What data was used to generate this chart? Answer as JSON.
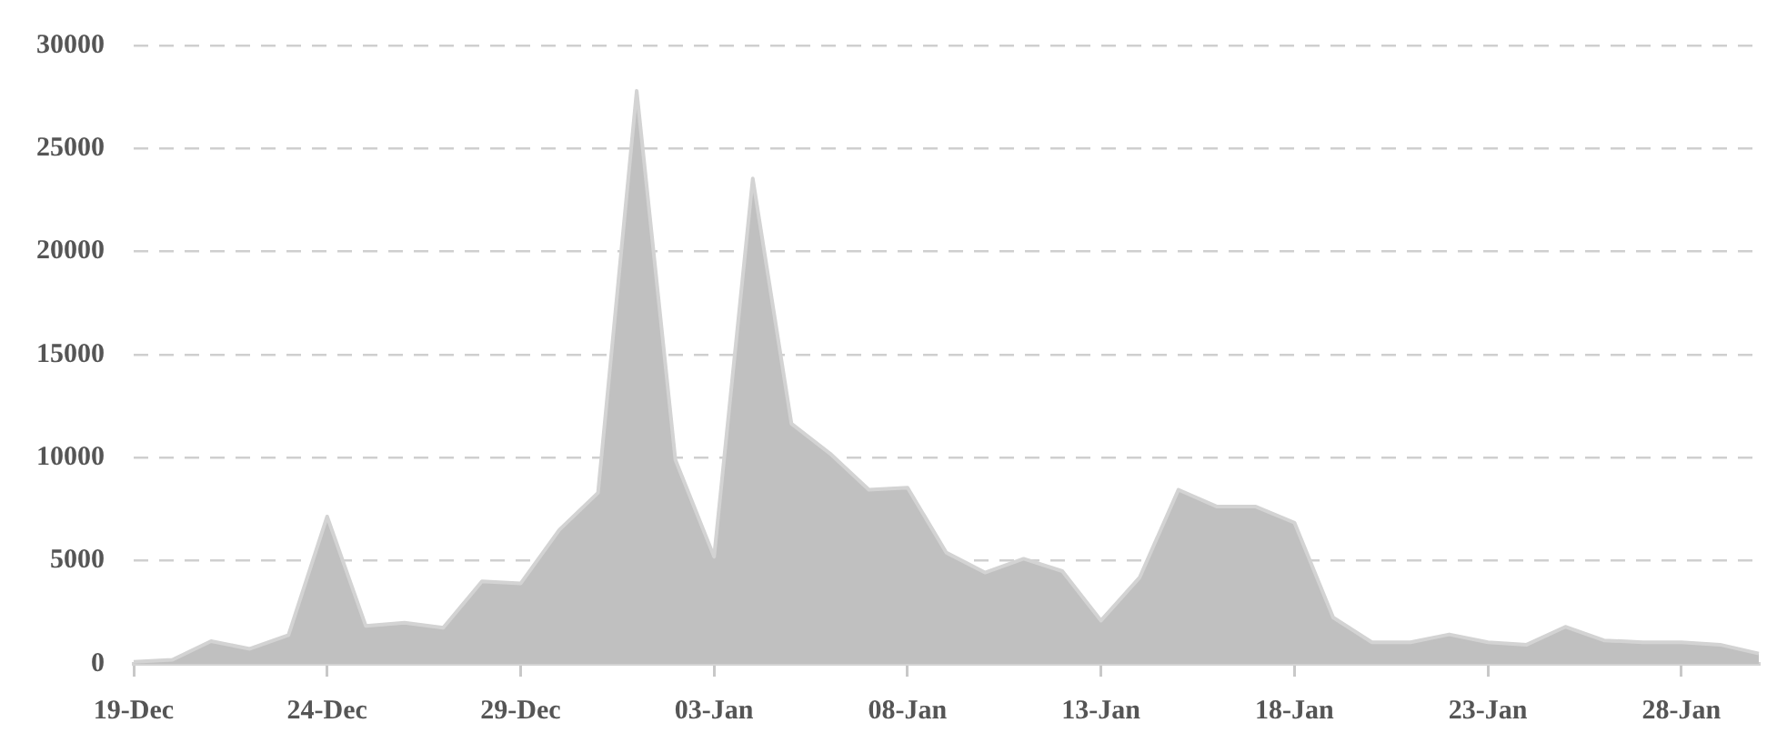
{
  "chart_data": {
    "type": "area",
    "categories": [
      "19-Dec",
      null,
      null,
      null,
      null,
      "24-Dec",
      null,
      null,
      null,
      null,
      "29-Dec",
      null,
      null,
      null,
      null,
      "03-Jan",
      null,
      null,
      null,
      null,
      "08-Jan",
      null,
      null,
      null,
      null,
      "13-Jan",
      null,
      null,
      null,
      null,
      "18-Jan",
      null,
      null,
      null,
      null,
      "23-Jan",
      null,
      null,
      null,
      null,
      "28-Jan",
      null,
      null
    ],
    "series": [
      {
        "color": "#c0c0c0",
        "values": [
          100,
          200,
          1100,
          730,
          1400,
          7150,
          1840,
          2000,
          1750,
          4000,
          3900,
          6500,
          8300,
          27800,
          9900,
          5200,
          23550,
          11650,
          10200,
          8450,
          8550,
          5400,
          4430,
          5100,
          4500,
          2100,
          4200,
          8450,
          7630,
          7630,
          6850,
          2250,
          1050,
          1050,
          1430,
          1050,
          930,
          1800,
          1140,
          1050,
          1050,
          930,
          500
        ]
      }
    ],
    "ylim": [
      0,
      30000
    ],
    "yticks": [
      0,
      5000,
      10000,
      15000,
      20000,
      25000,
      30000
    ],
    "grid": "y",
    "legend": false
  }
}
